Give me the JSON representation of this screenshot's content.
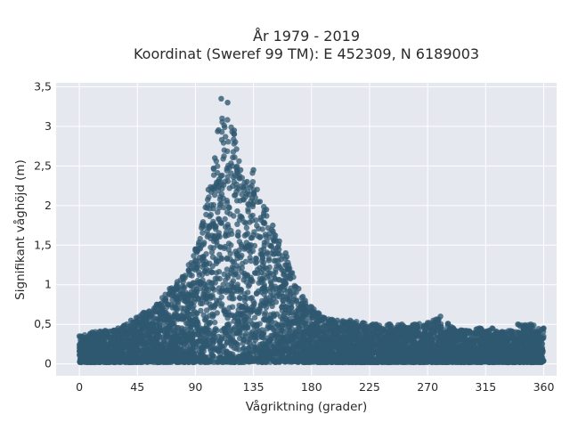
{
  "chart_data": {
    "type": "scatter",
    "title": [
      "År 1979 - 2019",
      "Koordinat (Sweref 99 TM): E 452309, N 6189003"
    ],
    "xlabel": "Vågriktning (grader)",
    "ylabel": "Signifikant våghöjd (m)",
    "xlim": [
      -18,
      370
    ],
    "ylim": [
      -0.15,
      3.55
    ],
    "xticks": [
      0,
      45,
      90,
      135,
      180,
      225,
      270,
      315,
      360
    ],
    "xtick_labels": [
      "0",
      "45",
      "90",
      "135",
      "180",
      "225",
      "270",
      "315",
      "360"
    ],
    "yticks": [
      0,
      0.5,
      1,
      1.5,
      2,
      2.5,
      3,
      3.5
    ],
    "ytick_labels": [
      "0",
      "0,5",
      "1",
      "1,5",
      "2",
      "2,5",
      "3",
      "3,5"
    ],
    "grid": true,
    "legend": "none",
    "marker_color": "#2f5870",
    "background": "#e5e8ef",
    "envelope": {
      "x": [
        0,
        10,
        20,
        30,
        40,
        50,
        60,
        70,
        80,
        90,
        95,
        100,
        105,
        110,
        115,
        120,
        125,
        130,
        135,
        140,
        145,
        150,
        155,
        160,
        165,
        170,
        175,
        180,
        190,
        200,
        210,
        220,
        230,
        240,
        250,
        260,
        270,
        280,
        290,
        300,
        310,
        320,
        330,
        340,
        350,
        360
      ],
      "y_max": [
        0.35,
        0.4,
        0.42,
        0.45,
        0.55,
        0.65,
        0.75,
        0.95,
        1.1,
        1.45,
        1.75,
        2.2,
        2.6,
        3.35,
        3.3,
        2.95,
        2.45,
        2.3,
        2.45,
        2.05,
        1.95,
        1.75,
        1.55,
        1.4,
        1.15,
        0.95,
        0.8,
        0.72,
        0.58,
        0.55,
        0.55,
        0.52,
        0.5,
        0.5,
        0.5,
        0.5,
        0.52,
        0.6,
        0.45,
        0.42,
        0.45,
        0.45,
        0.4,
        0.5,
        0.5,
        0.45
      ]
    }
  }
}
